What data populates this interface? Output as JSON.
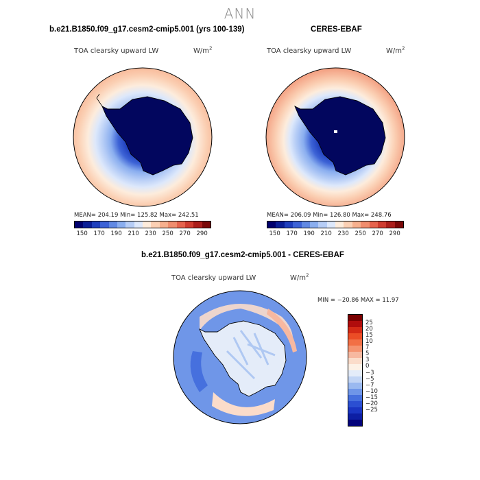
{
  "season": "ANN",
  "panels": [
    {
      "title": "b.e21.B1850.f09_g17.cesm2-cmip5.001 (yrs 100-139)",
      "variable": "TOA clearsky upward LW",
      "units": "W/m",
      "units_sup": "2",
      "stats": "MEAN= 204.19   Min= 125.82   Max= 242.51"
    },
    {
      "title": "CERES-EBAF",
      "variable": "TOA clearsky upward LW",
      "units": "W/m",
      "units_sup": "2",
      "stats": "MEAN= 206.09   Min= 126.80   Max= 248.76"
    },
    {
      "title": "b.e21.B1850.f09_g17.cesm2-cmip5.001 - CERES-EBAF",
      "variable": "TOA clearsky upward LW",
      "units": "W/m",
      "units_sup": "2",
      "stats": "MIN = −20.86 MAX =  11.97"
    }
  ],
  "field_colorbar": {
    "colors": [
      "#00006e",
      "#0a1e96",
      "#1f3fbd",
      "#3d63d6",
      "#6189e3",
      "#8aaeef",
      "#b6cdf6",
      "#dde8fb",
      "#fdecdc",
      "#fbd0b4",
      "#f7b08e",
      "#f08d6e",
      "#e6634d",
      "#cf3c30",
      "#ab1e1b",
      "#7a0808"
    ],
    "labels": [
      "150",
      "170",
      "190",
      "210",
      "230",
      "250",
      "270",
      "290"
    ]
  },
  "diff_colorbar": {
    "colors": [
      "#7a0000",
      "#b00c0c",
      "#d42a16",
      "#eb4d26",
      "#f26f45",
      "#f59370",
      "#f7b8a0",
      "#fbdcca",
      "#fdf1e6",
      "#e4ecf9",
      "#c2d5f5",
      "#9ab9f0",
      "#6f96e8",
      "#4670de",
      "#2b4fd2",
      "#1a35c2",
      "#0d1ea3",
      "#03037a"
    ],
    "labels": [
      "25",
      "20",
      "15",
      "10",
      "7",
      "5",
      "3",
      "0",
      "−3",
      "−5",
      "−7",
      "−10",
      "−15",
      "−20",
      "−25"
    ]
  },
  "chart_data": [
    {
      "type": "heatmap",
      "projection": "south-polar-stereographic",
      "title": "b.e21.B1850.f09_g17.cesm2-cmip5.001 (yrs 100-139)",
      "variable": "TOA clearsky upward LW",
      "units": "W/m2",
      "mean": 204.19,
      "min": 125.82,
      "max": 242.51,
      "contour_levels": [
        150,
        170,
        190,
        210,
        230,
        250,
        270,
        290
      ]
    },
    {
      "type": "heatmap",
      "projection": "south-polar-stereographic",
      "title": "CERES-EBAF",
      "variable": "TOA clearsky upward LW",
      "units": "W/m2",
      "mean": 206.09,
      "min": 126.8,
      "max": 248.76,
      "contour_levels": [
        150,
        170,
        190,
        210,
        230,
        250,
        270,
        290
      ]
    },
    {
      "type": "heatmap",
      "projection": "south-polar-stereographic",
      "title": "b.e21.B1850.f09_g17.cesm2-cmip5.001 - CERES-EBAF",
      "variable": "TOA clearsky upward LW",
      "units": "W/m2",
      "min": -20.86,
      "max": 11.97,
      "contour_levels": [
        -25,
        -20,
        -15,
        -10,
        -7,
        -5,
        -3,
        0,
        3,
        5,
        7,
        10,
        15,
        20,
        25
      ]
    }
  ]
}
